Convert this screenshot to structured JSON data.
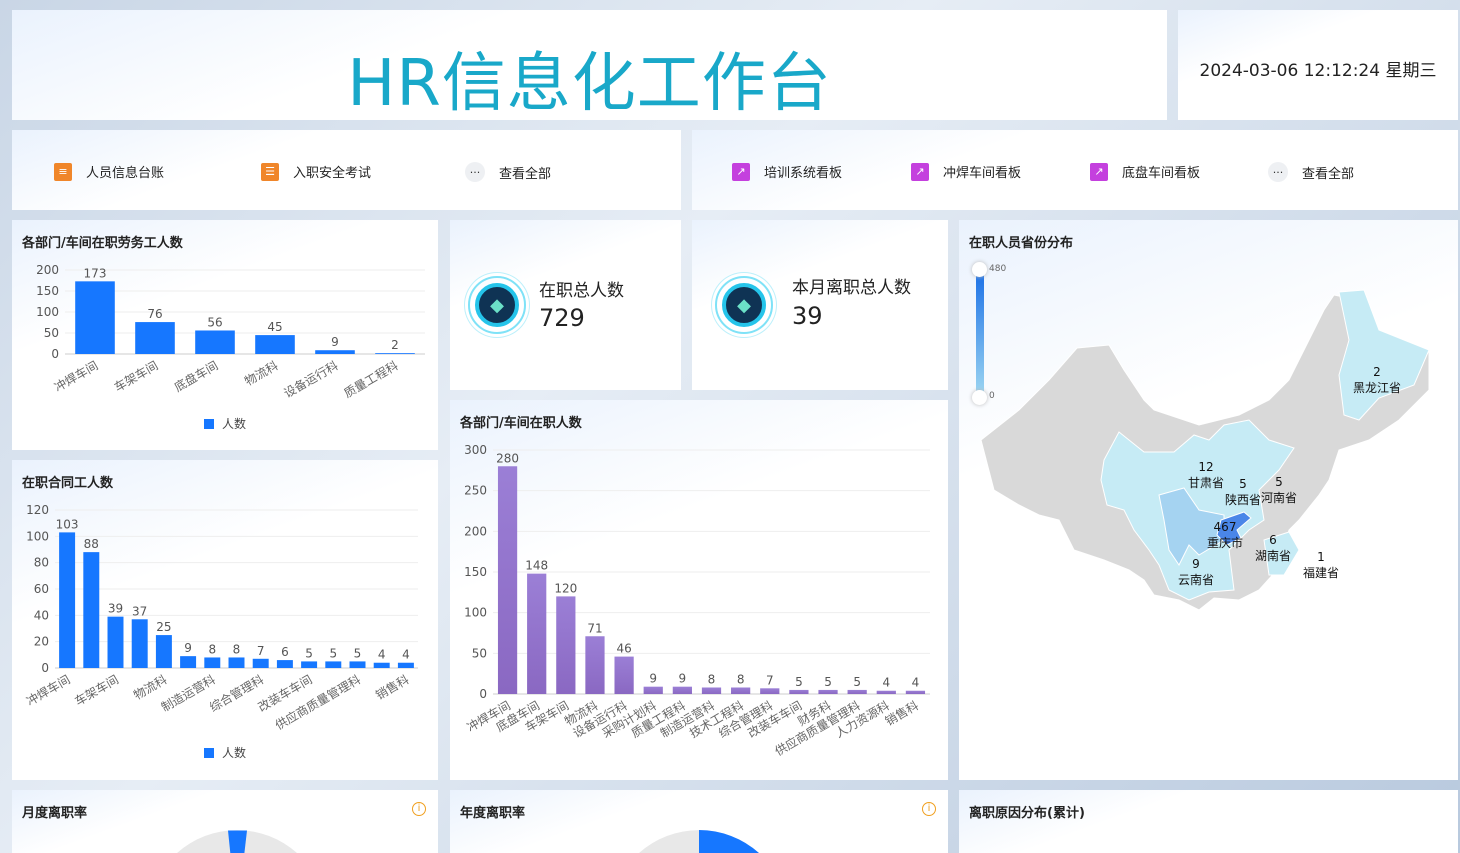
{
  "header": {
    "title": "HR信息化工作台",
    "datetime": "2024-03-06 12:12:24 星期三"
  },
  "nav_left": [
    {
      "label": "人员信息台账",
      "icon": "clipboard-icon"
    },
    {
      "label": "入职安全考试",
      "icon": "document-icon"
    },
    {
      "label": "查看全部",
      "icon": "more-icon"
    }
  ],
  "nav_right": [
    {
      "label": "培训系统看板",
      "icon": "dashboard-icon"
    },
    {
      "label": "冲焊车间看板",
      "icon": "dashboard-icon"
    },
    {
      "label": "底盘车间看板",
      "icon": "dashboard-icon"
    },
    {
      "label": "查看全部",
      "icon": "more-icon"
    }
  ],
  "stats": [
    {
      "label": "在职总人数",
      "value": "729",
      "icon": "diamond-icon"
    },
    {
      "label": "本月离职总人数",
      "value": "39",
      "icon": "diamond-icon"
    }
  ],
  "colors": {
    "title": "#19a8c9",
    "bar_blue": "#1677ff",
    "bar_purple": "#9370cc",
    "map_base": "#d9d9d9",
    "map_low": "#c6ebf5",
    "map_high": "#4a86e8"
  },
  "chart_data": [
    {
      "id": "labor",
      "type": "bar",
      "title": "各部门/车间在职劳务工人数",
      "categories": [
        "冲焊车间",
        "车架车间",
        "底盘车间",
        "物流科",
        "设备运行科",
        "质量工程科"
      ],
      "values": [
        173,
        76,
        56,
        45,
        9,
        2
      ],
      "ylim": [
        0,
        200
      ],
      "yticks": [
        0,
        50,
        100,
        150,
        200
      ],
      "legend": "人数",
      "legend_position": "bottom",
      "grid": true
    },
    {
      "id": "contract",
      "type": "bar",
      "title": "在职合同工人数",
      "categories": [
        "冲焊车间",
        "",
        "车架车间",
        "",
        "物流科",
        "",
        "制造运营科",
        "",
        "综合管理科",
        "",
        "改装车车间",
        "",
        "供应商质量管理科",
        "",
        "销售科"
      ],
      "values": [
        103,
        88,
        39,
        37,
        25,
        9,
        8,
        8,
        7,
        6,
        5,
        5,
        5,
        4,
        4
      ],
      "ylim": [
        0,
        120
      ],
      "yticks": [
        0,
        20,
        40,
        60,
        80,
        100,
        120
      ],
      "legend": "人数",
      "legend_position": "bottom",
      "grid": true
    },
    {
      "id": "staff",
      "type": "bar",
      "title": "各部门/车间在职人数",
      "categories": [
        "冲焊车间",
        "底盘车间",
        "车架车间",
        "物流科",
        "设备运行科",
        "采购计划科",
        "质量工程科",
        "制造运营科",
        "技术工程科",
        "综合管理科",
        "改装车车间",
        "财务科",
        "供应商质量管理科",
        "人力资源科",
        "销售科"
      ],
      "values": [
        280,
        148,
        120,
        71,
        46,
        9,
        9,
        8,
        8,
        7,
        5,
        5,
        5,
        4,
        4
      ],
      "ylim": [
        0,
        300
      ],
      "yticks": [
        0,
        50,
        100,
        150,
        200,
        250,
        300
      ],
      "grid": true
    }
  ],
  "map": {
    "title": "在职人员省份分布",
    "visual_max": "480",
    "visual_min": "0",
    "provinces": [
      {
        "name": "黑龙江省",
        "value": "2"
      },
      {
        "name": "甘肃省",
        "value": "12"
      },
      {
        "name": "陕西省",
        "value": "5"
      },
      {
        "name": "河南省",
        "value": "5"
      },
      {
        "name": "重庆市",
        "value": "467"
      },
      {
        "name": "湖南省",
        "value": "6"
      },
      {
        "name": "云南省",
        "value": "9"
      },
      {
        "name": "福建省",
        "value": "1"
      }
    ]
  },
  "bottom": {
    "monthly": "月度离职率",
    "annual": "年度离职率",
    "reasons": "离职原因分布(累计)",
    "info": "i"
  }
}
